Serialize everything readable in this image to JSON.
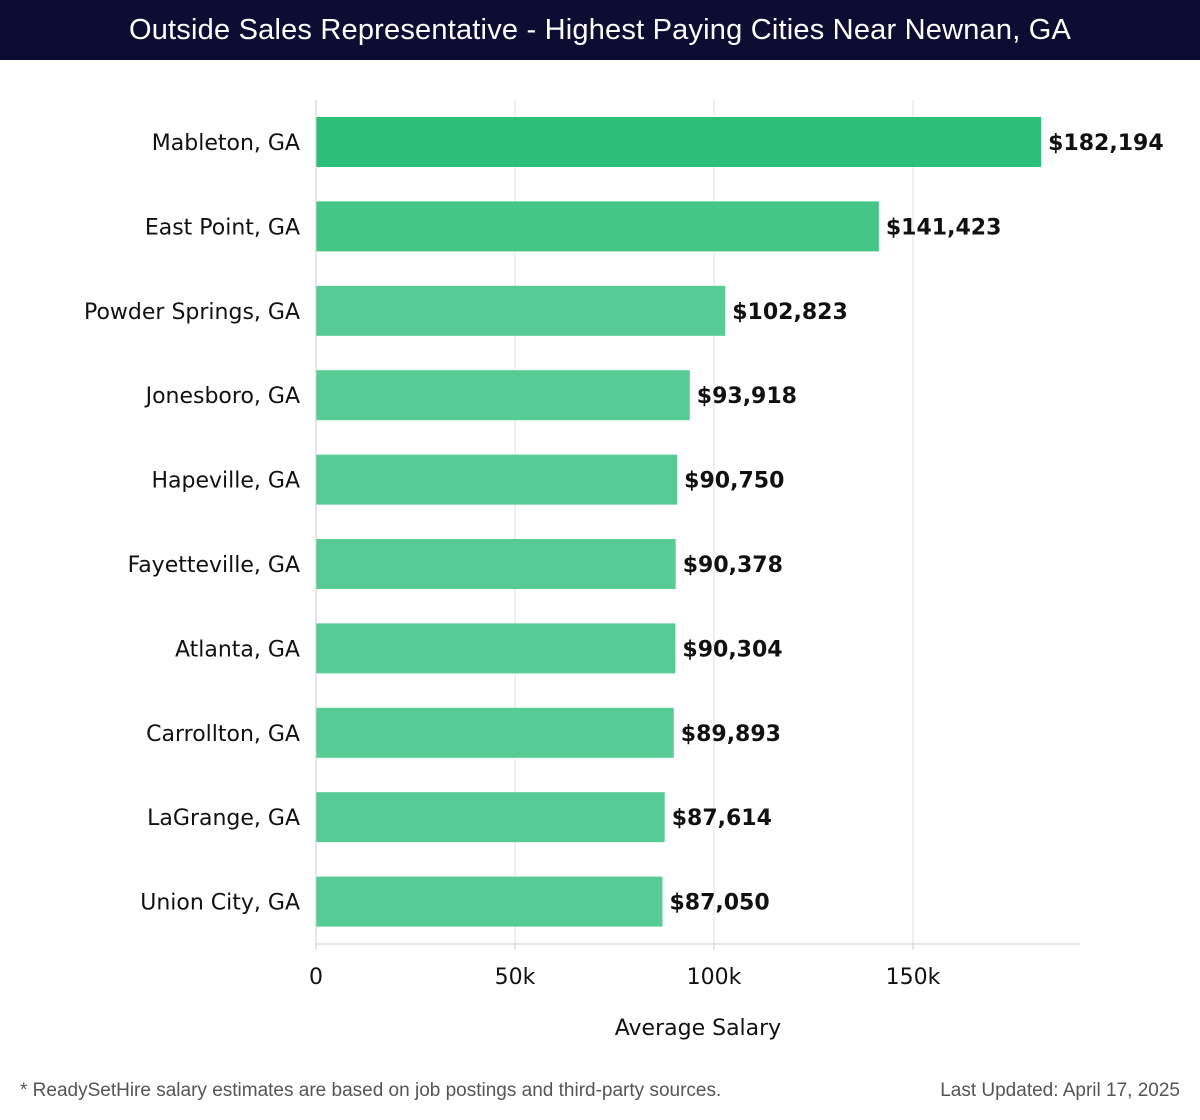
{
  "header": {
    "title": "Outside Sales Representative - Highest Paying Cities Near Newnan, GA"
  },
  "chart_data": {
    "type": "bar",
    "orientation": "horizontal",
    "title": "Outside Sales Representative - Highest Paying Cities Near Newnan, GA",
    "xlabel": "Average Salary",
    "ylabel": "",
    "xlim": [
      0,
      192000
    ],
    "xticks": [
      0,
      50000,
      100000,
      150000
    ],
    "xtick_labels": [
      "0",
      "50k",
      "100k",
      "150k"
    ],
    "grid": true,
    "categories": [
      "Mableton, GA",
      "East Point, GA",
      "Powder Springs, GA",
      "Jonesboro, GA",
      "Hapeville, GA",
      "Fayetteville, GA",
      "Atlanta, GA",
      "Carrollton, GA",
      "LaGrange, GA",
      "Union City, GA"
    ],
    "values": [
      182194,
      141423,
      102823,
      93918,
      90750,
      90378,
      90304,
      89893,
      87614,
      87050
    ],
    "value_labels": [
      "$182,194",
      "$141,423",
      "$102,823",
      "$93,918",
      "$90,750",
      "$90,378",
      "$90,304",
      "$89,893",
      "$87,614",
      "$87,050"
    ],
    "colors": {
      "max_bar": "#2bbf77",
      "mid_bar": "#44c686",
      "base_bar": "#56cc94",
      "grid": "#e2e2e2",
      "axis": "#cccccc",
      "text": "#111111"
    }
  },
  "footer": {
    "note": "* ReadySetHire salary estimates are based on job postings and third-party sources.",
    "updated": "Last Updated: April 17, 2025"
  }
}
